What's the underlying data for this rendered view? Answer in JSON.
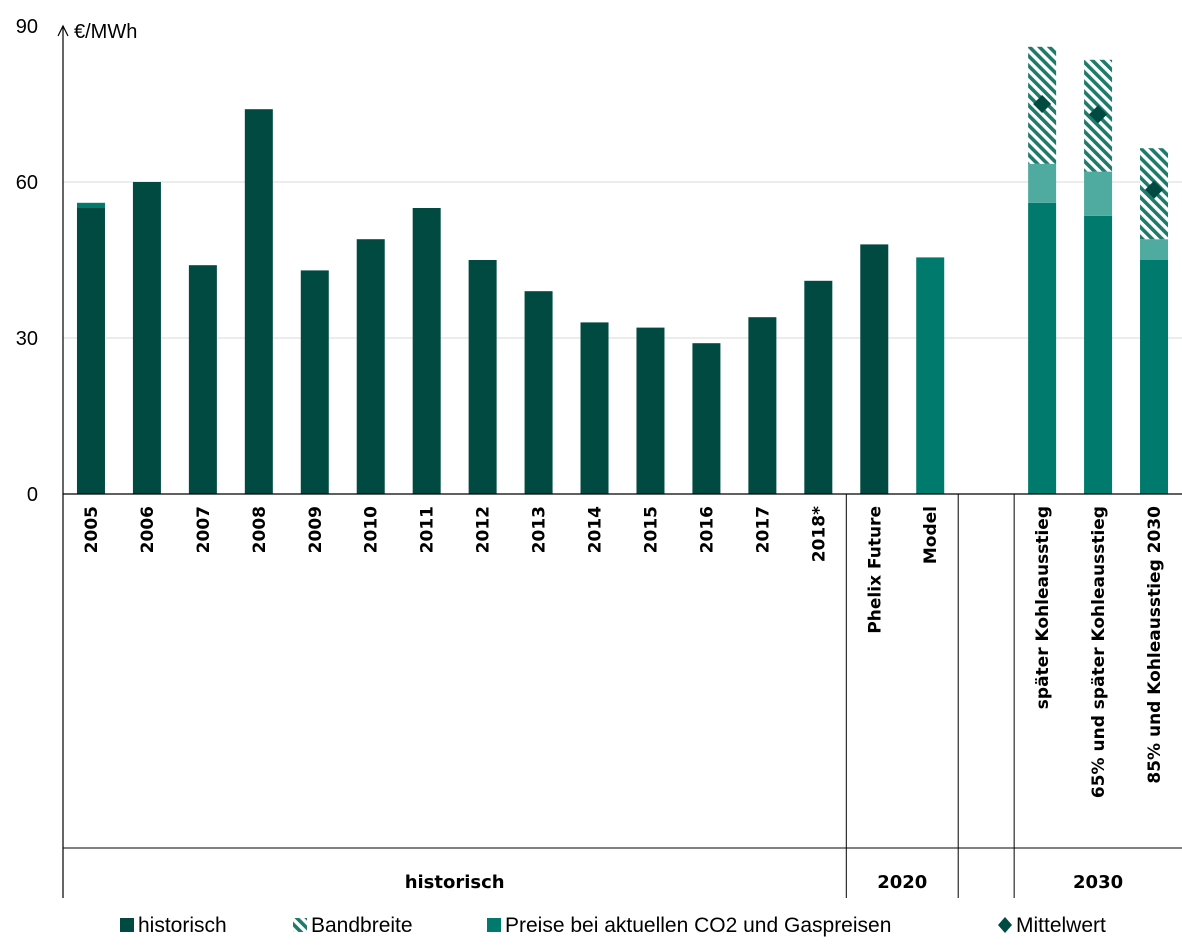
{
  "chart_data": {
    "type": "bar",
    "unit_label": "€/MWh",
    "ylim": [
      0,
      90
    ],
    "yticks": [
      0,
      30,
      60,
      90
    ],
    "grid": true,
    "legend_position": "bottom",
    "categories": [
      "2005",
      "2006",
      "2007",
      "2008",
      "2009",
      "2010",
      "2011",
      "2012",
      "2013",
      "2014",
      "2015",
      "2016",
      "2017",
      "2018*",
      "Phelix Future",
      "Model",
      "",
      "später Kohleausstieg",
      "65% und später Kohleausstieg",
      "85% und Kohleausstieg 2030"
    ],
    "groups": [
      {
        "label": "historisch",
        "from": 0,
        "to": 13
      },
      {
        "label": "2020",
        "from": 14,
        "to": 15
      },
      {
        "label": "2030",
        "from": 17,
        "to": 19
      }
    ],
    "series": [
      {
        "name": "historisch",
        "color": "#004a42",
        "values": [
          55,
          60,
          44,
          74,
          43,
          49,
          55,
          45,
          39,
          33,
          32,
          29,
          34,
          41,
          48,
          null,
          null,
          null,
          null,
          null
        ]
      },
      {
        "name": "Preise bei aktuellen CO2 und Gaspreisen",
        "color": "#007a6c",
        "values": [
          1,
          null,
          null,
          null,
          null,
          null,
          null,
          null,
          null,
          null,
          null,
          null,
          null,
          null,
          null,
          45.5,
          null,
          56,
          53.5,
          45
        ]
      },
      {
        "name": "",
        "color": "#4faaa0",
        "values": [
          null,
          null,
          null,
          null,
          null,
          null,
          null,
          null,
          null,
          null,
          null,
          null,
          null,
          null,
          null,
          null,
          null,
          7.5,
          8.5,
          4
        ]
      },
      {
        "name": "Bandbreite",
        "color": "#1f7a6c",
        "pattern": "hatched",
        "values": [
          null,
          null,
          null,
          null,
          null,
          null,
          null,
          null,
          null,
          null,
          null,
          null,
          null,
          null,
          null,
          null,
          null,
          22.5,
          21.5,
          17.5
        ]
      }
    ],
    "mittelwert": {
      "name": "Mittelwert",
      "color": "#004a42",
      "values": [
        null,
        null,
        null,
        null,
        null,
        null,
        null,
        null,
        null,
        null,
        null,
        null,
        null,
        null,
        null,
        null,
        null,
        75,
        73,
        58.5
      ]
    }
  },
  "legend": [
    {
      "label": "historisch",
      "swatch": "solid",
      "color": "#004a42"
    },
    {
      "label": "Bandbreite",
      "swatch": "hatched",
      "color": "#1f7a6c"
    },
    {
      "label": "Preise bei aktuellen CO2 und Gaspreisen",
      "swatch": "solid",
      "color": "#007a6c"
    },
    {
      "label": "Mittelwert",
      "swatch": "diamond",
      "color": "#004a42"
    }
  ]
}
